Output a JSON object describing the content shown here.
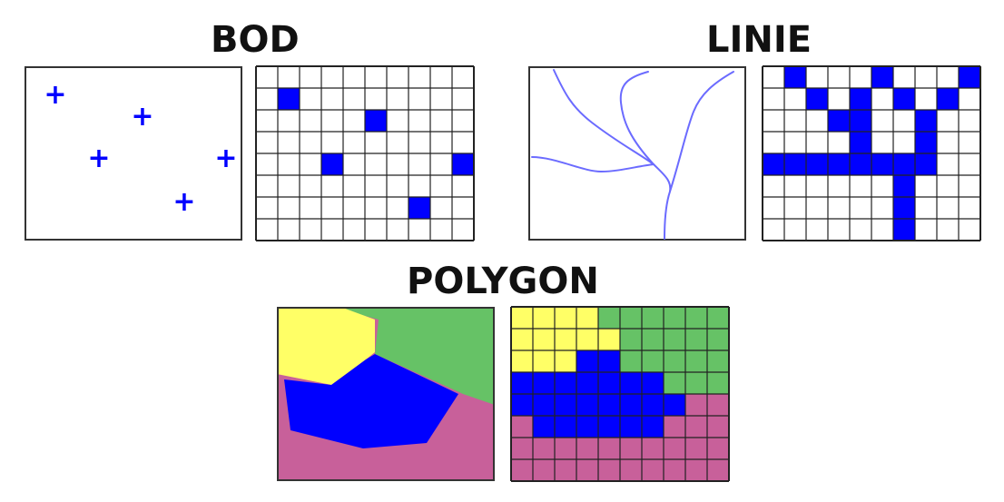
{
  "titles": {
    "point": "BOD",
    "line": "LINIE",
    "polygon": "POLYGON"
  },
  "colors": {
    "feature_blue": "#0000ff",
    "stream_blue": "#6b6bff",
    "polygon_yellow": "#ffff66",
    "polygon_green": "#66c266",
    "polygon_pink": "#c8609a",
    "grid_line": "#222222",
    "panel_border": "#333333"
  },
  "raster": {
    "point_grid": {
      "cols": 10,
      "rows": 8,
      "cells": [
        [
          1,
          1
        ],
        [
          5,
          2
        ],
        [
          3,
          4
        ],
        [
          9,
          4
        ],
        [
          7,
          6
        ]
      ]
    },
    "line_grid": {
      "cols": 10,
      "rows": 8,
      "cells": [
        [
          1,
          0
        ],
        [
          5,
          0
        ],
        [
          9,
          0
        ],
        [
          2,
          1
        ],
        [
          4,
          1
        ],
        [
          6,
          1
        ],
        [
          8,
          1
        ],
        [
          3,
          2
        ],
        [
          4,
          2
        ],
        [
          7,
          2
        ],
        [
          4,
          3
        ],
        [
          7,
          3
        ],
        [
          0,
          4
        ],
        [
          1,
          4
        ],
        [
          2,
          4
        ],
        [
          3,
          4
        ],
        [
          4,
          4
        ],
        [
          5,
          4
        ],
        [
          6,
          4
        ],
        [
          7,
          4
        ],
        [
          6,
          5
        ],
        [
          6,
          6
        ],
        [
          6,
          7
        ]
      ]
    },
    "polygon_grid": {
      "cols": 10,
      "rows": 8,
      "rows_colors": [
        [
          "Y",
          "Y",
          "Y",
          "Y",
          "G",
          "G",
          "G",
          "G",
          "G",
          "G"
        ],
        [
          "Y",
          "Y",
          "Y",
          "Y",
          "Y",
          "G",
          "G",
          "G",
          "G",
          "G"
        ],
        [
          "Y",
          "Y",
          "Y",
          "B",
          "B",
          "G",
          "G",
          "G",
          "G",
          "G"
        ],
        [
          "B",
          "B",
          "B",
          "B",
          "B",
          "B",
          "B",
          "G",
          "G",
          "G"
        ],
        [
          "B",
          "B",
          "B",
          "B",
          "B",
          "B",
          "B",
          "B",
          "P",
          "P"
        ],
        [
          "P",
          "B",
          "B",
          "B",
          "B",
          "B",
          "B",
          "P",
          "P",
          "P"
        ],
        [
          "P",
          "P",
          "P",
          "P",
          "P",
          "P",
          "P",
          "P",
          "P",
          "P"
        ],
        [
          "P",
          "P",
          "P",
          "P",
          "P",
          "P",
          "P",
          "P",
          "P",
          "P"
        ]
      ]
    }
  },
  "vector": {
    "point_markers": [
      {
        "id": "p1",
        "glyph": "+"
      },
      {
        "id": "p2",
        "glyph": "+"
      },
      {
        "id": "p3",
        "glyph": "+"
      },
      {
        "id": "p4",
        "glyph": "+"
      },
      {
        "id": "p5",
        "glyph": "+"
      }
    ]
  }
}
